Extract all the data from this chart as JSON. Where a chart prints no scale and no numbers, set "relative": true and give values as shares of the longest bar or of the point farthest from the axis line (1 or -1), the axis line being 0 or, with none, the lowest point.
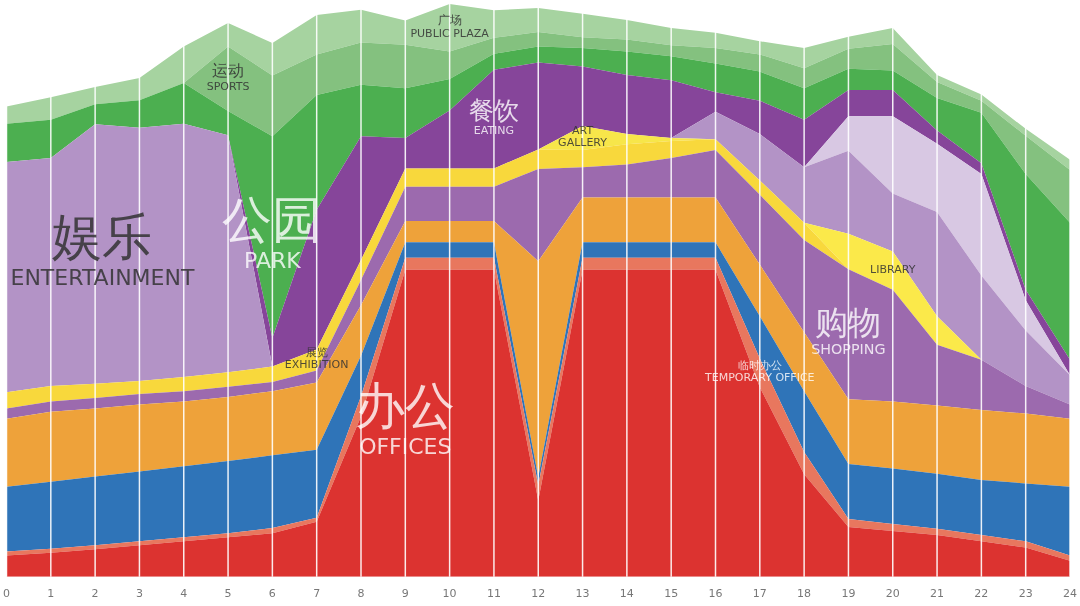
{
  "chart_data": {
    "type": "area",
    "stacked": true,
    "relative": true,
    "grid": "x",
    "legend": false,
    "x": [
      0,
      1,
      2,
      3,
      4,
      5,
      6,
      7,
      8,
      9,
      10,
      11,
      12,
      13,
      14,
      15,
      16,
      17,
      18,
      19,
      20,
      21,
      22,
      23,
      24
    ],
    "xlim": [
      0,
      24
    ],
    "xticks": [
      0,
      1,
      2,
      3,
      4,
      5,
      6,
      7,
      8,
      9,
      10,
      11,
      12,
      13,
      14,
      15,
      16,
      17,
      18,
      19,
      20,
      21,
      22,
      23,
      24
    ],
    "series": [
      {
        "name": "办公 OFFICES",
        "color": "#dc3330",
        "values": [
          0.037,
          0.042,
          0.048,
          0.055,
          0.062,
          0.069,
          0.076,
          0.096,
          0.28,
          0.536,
          0.536,
          0.536,
          0.133,
          0.536,
          0.536,
          0.536,
          0.536,
          0.331,
          0.179,
          0.087,
          0.08,
          0.073,
          0.062,
          0.051,
          0.028
        ]
      },
      {
        "name": "临时办公 TEMPORARY OFFICE",
        "color": "#e8775e",
        "values": [
          0.007,
          0.007,
          0.007,
          0.007,
          0.007,
          0.007,
          0.009,
          0.007,
          0.035,
          0.021,
          0.021,
          0.021,
          0.027,
          0.021,
          0.021,
          0.021,
          0.021,
          0.05,
          0.039,
          0.014,
          0.012,
          0.011,
          0.011,
          0.011,
          0.009
        ]
      },
      {
        "color": "#2f74b8",
        "values": [
          0.113,
          0.117,
          0.12,
          0.122,
          0.124,
          0.126,
          0.127,
          0.119,
          0.071,
          0.027,
          0.027,
          0.027,
          0.014,
          0.027,
          0.027,
          0.027,
          0.027,
          0.074,
          0.106,
          0.096,
          0.097,
          0.096,
          0.096,
          0.101,
          0.12
        ]
      },
      {
        "color": "#eea23a",
        "values": [
          0.119,
          0.122,
          0.119,
          0.117,
          0.113,
          0.112,
          0.112,
          0.117,
          0.088,
          0.037,
          0.037,
          0.037,
          0.377,
          0.078,
          0.078,
          0.078,
          0.078,
          0.09,
          0.103,
          0.113,
          0.117,
          0.119,
          0.122,
          0.122,
          0.119
        ]
      },
      {
        "name": "购物 SHOPPING",
        "color": "#9c6aae",
        "values": [
          0.018,
          0.018,
          0.018,
          0.018,
          0.018,
          0.018,
          0.016,
          0.021,
          0.044,
          0.06,
          0.06,
          0.06,
          0.161,
          0.053,
          0.058,
          0.069,
          0.083,
          0.122,
          0.161,
          0.227,
          0.195,
          0.106,
          0.088,
          0.048,
          0.025
        ]
      },
      {
        "name": "展览 EXHIBITION",
        "color": "#f8d83c",
        "values": [
          0.028,
          0.027,
          0.025,
          0.023,
          0.025,
          0.025,
          0.027,
          0.037,
          0.035,
          0.032,
          0.032,
          0.032,
          0.034,
          0.03,
          0.035,
          0.03,
          0.019,
          0.025,
          0.03,
          0,
          0,
          0,
          0,
          0,
          0
        ]
      },
      {
        "name": "LIBRARY",
        "color": "#fbe94a",
        "values": [
          0,
          0,
          0,
          0,
          0,
          0,
          0,
          0,
          0,
          0,
          0,
          0,
          0,
          0,
          0,
          0,
          0,
          0,
          0,
          0.062,
          0.067,
          0.05,
          0,
          0,
          0
        ]
      },
      {
        "name": "ART GALLERY",
        "color": "#f7e64a",
        "values": [
          0,
          0,
          0,
          0,
          0,
          0,
          0,
          0,
          0,
          0,
          0,
          0,
          0,
          0.042,
          0.018,
          0.005,
          0,
          0,
          0,
          0,
          0,
          0,
          0,
          0,
          0
        ]
      },
      {
        "name": "娱乐 ENTERTAINMENT",
        "color": "#b393c6",
        "values": [
          0.402,
          0.398,
          0.453,
          0.442,
          0.442,
          0.414,
          0,
          0,
          0,
          0,
          0,
          0,
          0,
          0,
          0,
          0,
          0.048,
          0.081,
          0.097,
          0.145,
          0.101,
          0.182,
          0.147,
          0.097,
          0.051
        ]
      },
      {
        "color": "#d8c8e3",
        "values": [
          0,
          0,
          0,
          0,
          0,
          0,
          0,
          0,
          0,
          0,
          0,
          0,
          0,
          0,
          0,
          0,
          0,
          0,
          0,
          0.06,
          0.135,
          0.119,
          0.177,
          0.053,
          0
        ]
      },
      {
        "name": "餐饮 EATING",
        "color": "#86459a",
        "values": [
          0,
          0,
          0,
          0,
          0,
          0,
          0.05,
          0.244,
          0.216,
          0.053,
          0.101,
          0.172,
          0.152,
          0.104,
          0.103,
          0.101,
          0.034,
          0.058,
          0.083,
          0.046,
          0.046,
          0.023,
          0.019,
          0.018,
          0.027
        ]
      },
      {
        "name": "公园 PARK",
        "color": "#4caf50",
        "values": [
          0.067,
          0.067,
          0.035,
          0.048,
          0.071,
          0.042,
          0.352,
          0.2,
          0.09,
          0.087,
          0.055,
          0.028,
          0.028,
          0.032,
          0.041,
          0.042,
          0.05,
          0.051,
          0.055,
          0.037,
          0.034,
          0.057,
          0.088,
          0.202,
          0.239
        ]
      },
      {
        "name": "运动 SPORTS",
        "color": "#84c17f",
        "values": [
          0,
          0,
          0,
          0,
          0,
          0.113,
          0.106,
          0.071,
          0.074,
          0.076,
          0.048,
          0.028,
          0.025,
          0.019,
          0.021,
          0.019,
          0.027,
          0.03,
          0.035,
          0.035,
          0.046,
          0.028,
          0.021,
          0.067,
          0.092
        ]
      },
      {
        "name": "广场 PUBLIC PLAZA",
        "color": "#a6d3a0",
        "values": [
          0.03,
          0.039,
          0.03,
          0.039,
          0.064,
          0.041,
          0.057,
          0.069,
          0.057,
          0.042,
          0.083,
          0.048,
          0.042,
          0.041,
          0.034,
          0.03,
          0.027,
          0.023,
          0.035,
          0.021,
          0.028,
          0.012,
          0.011,
          0.012,
          0.018
        ]
      }
    ]
  }
}
